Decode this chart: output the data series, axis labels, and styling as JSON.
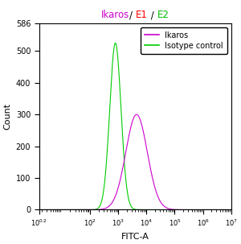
{
  "title_parts": [
    [
      "Ikaros",
      "#cc00cc"
    ],
    [
      "/ ",
      "#000000"
    ],
    [
      "E1",
      "#ff0000"
    ],
    [
      " / ",
      "#000000"
    ],
    [
      "E2",
      "#00bb00"
    ]
  ],
  "xlabel": "FITC-A",
  "ylabel": "Count",
  "xlim_log_min": 0.2,
  "xlim_log_max": 7,
  "ylim": [
    0,
    586
  ],
  "yticks": [
    0,
    100,
    200,
    300,
    400,
    500,
    586
  ],
  "ytick_labels": [
    "0",
    "100",
    "200",
    "300",
    "400",
    "500",
    "586"
  ],
  "green_peak_log": 2.9,
  "green_sigma": 0.2,
  "green_height": 525,
  "magenta_peak_log": 3.65,
  "magenta_sigma": 0.38,
  "magenta_height": 300,
  "green_color": "#00cc00",
  "magenta_color": "#cc00cc",
  "legend_labels": [
    "Ikaros",
    "Isotype control"
  ],
  "legend_magenta_color": "#cc00cc",
  "legend_green_color": "#00cc00",
  "bg_color": "#ffffff",
  "title_fontsize": 8.5,
  "axis_fontsize": 8,
  "tick_fontsize": 7,
  "legend_fontsize": 7
}
